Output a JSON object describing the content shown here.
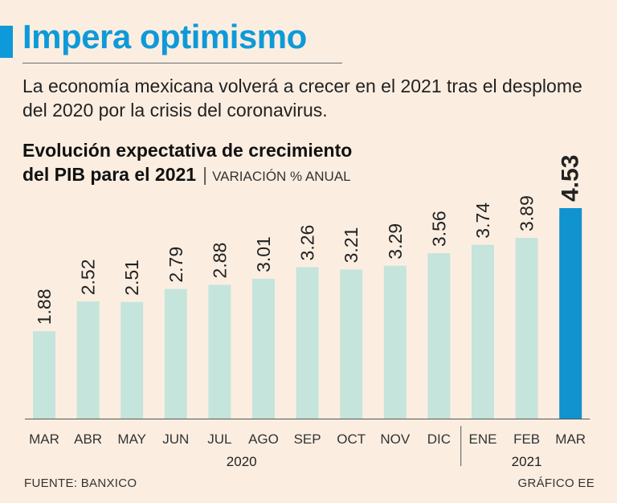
{
  "headline": "Impera optimismo",
  "subtitle": "La economía mexicana volverá a crecer en el 2021 tras el desplome del 2020 por la crisis del coronavirus.",
  "chart_title_line1": "Evolución expectativa de crecimiento",
  "chart_title_line2": "del PIB para el 2021",
  "chart_title_separator": "|",
  "chart_units": "VARIACIÓN % ANUAL",
  "source": "FUENTE: BANXICO",
  "credit": "GRÁFICO EE",
  "colors": {
    "accent": "#0e9ad8",
    "bar": "#c5e4dc",
    "highlight_bar": "#1093cf",
    "background": "#fbeee1",
    "axis": "#555555"
  },
  "chart_data": {
    "type": "bar",
    "title": "Evolución expectativa de crecimiento del PIB para el 2021",
    "ylabel": "VARIACIÓN % ANUAL",
    "xlabel": "",
    "categories": [
      "MAR",
      "ABR",
      "MAY",
      "JUN",
      "JUL",
      "AGO",
      "SEP",
      "OCT",
      "NOV",
      "DIC",
      "ENE",
      "FEB",
      "MAR"
    ],
    "values": [
      1.88,
      2.52,
      2.51,
      2.79,
      2.88,
      3.01,
      3.26,
      3.21,
      3.29,
      3.56,
      3.74,
      3.89,
      4.53
    ],
    "value_labels": [
      "1.88",
      "2.52",
      "2.51",
      "2.79",
      "2.88",
      "3.01",
      "3.26",
      "3.21",
      "3.29",
      "3.56",
      "3.74",
      "3.89",
      "4.53"
    ],
    "year_groups": [
      {
        "label": "2020",
        "count": 10
      },
      {
        "label": "2021",
        "count": 3
      }
    ],
    "highlight_index": 12,
    "ylim": [
      0,
      4.53
    ],
    "grid": false
  }
}
